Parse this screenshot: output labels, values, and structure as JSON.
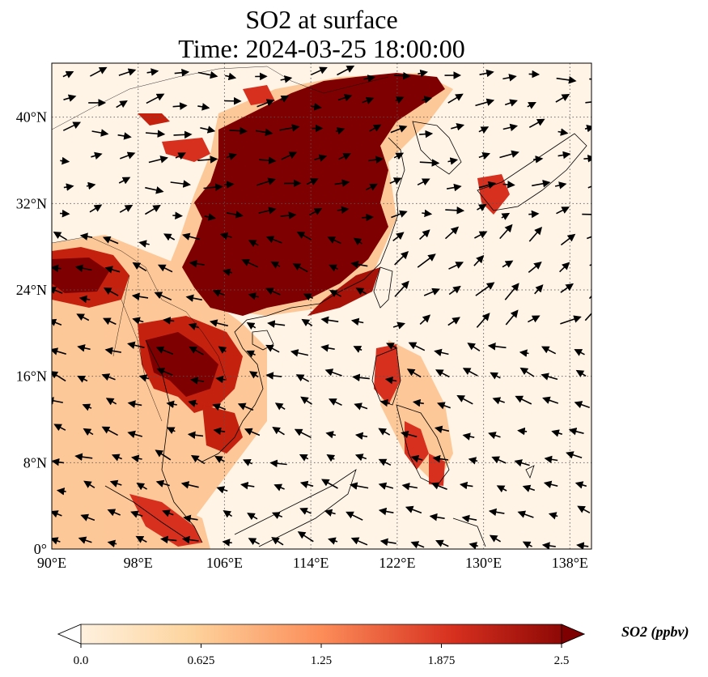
{
  "title": {
    "line1": "SO2 at surface",
    "line2": "Time: 2024-03-25 18:00:00"
  },
  "map": {
    "lon_range": [
      90,
      140
    ],
    "lat_range": [
      0,
      45
    ],
    "lon_ticks": [
      "90°E",
      "98°E",
      "106°E",
      "114°E",
      "122°E",
      "130°E",
      "138°E"
    ],
    "lat_ticks": [
      "0°",
      "8°N",
      "16°N",
      "24°N",
      "32°N",
      "40°N"
    ],
    "gridlines": "dotted",
    "field": "SO2 concentration",
    "wind_vectors": true
  },
  "colorbar": {
    "label": "SO2 (ppbv)",
    "ticks": [
      "0.0",
      "0.625",
      "1.25",
      "1.875",
      "2.5"
    ],
    "min": 0.0,
    "max": 2.5,
    "extend": "both",
    "colormap": "OrRd",
    "colors": [
      "#fff7ec",
      "#fdd49e",
      "#fc8d59",
      "#d7301f",
      "#7f0000"
    ]
  }
}
